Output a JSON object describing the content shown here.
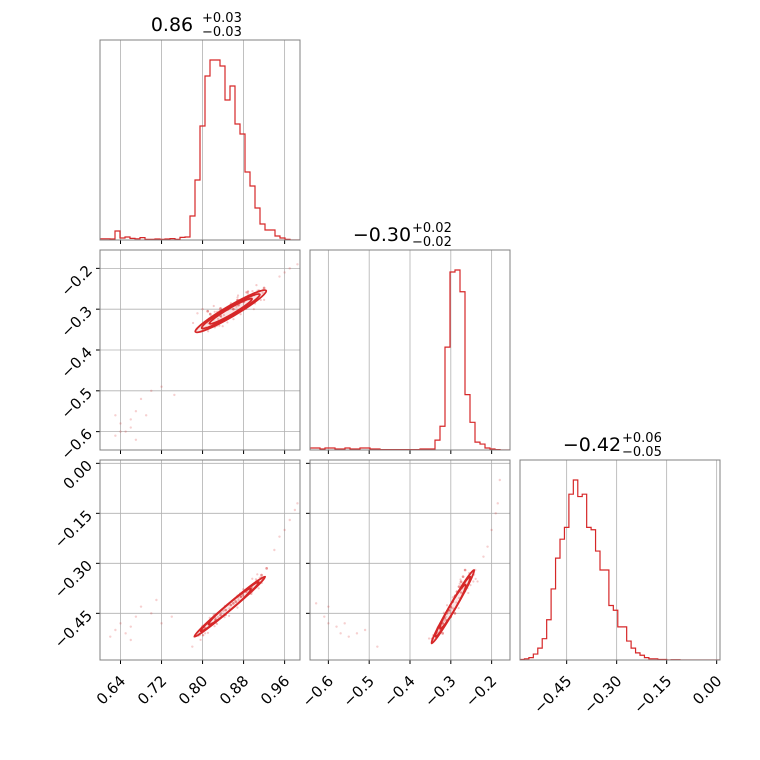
{
  "chart_data": {
    "type": "corner",
    "grid": true,
    "colors": {
      "line": "#d62728",
      "grid": "#b0b0b0",
      "frame": "#808080"
    },
    "titles": [
      {
        "main": "0.86",
        "plus": "+0.03",
        "minus": "−0.03"
      },
      {
        "main": "−0.30",
        "plus": "+0.02",
        "minus": "−0.02"
      },
      {
        "main": "−0.42",
        "plus": "+0.06",
        "minus": "−0.05"
      }
    ],
    "params": [
      {
        "range": [
          0.6,
          0.99
        ],
        "ticks": [
          0.64,
          0.72,
          0.8,
          0.88,
          0.96
        ],
        "tick_labels": [
          "0.64",
          "0.72",
          "0.80",
          "0.88",
          "0.96"
        ]
      },
      {
        "range": [
          -0.645,
          -0.155
        ],
        "ticks": [
          -0.6,
          -0.5,
          -0.4,
          -0.3,
          -0.2
        ],
        "tick_labels": [
          "−0.6",
          "−0.5",
          "−0.4",
          "−0.3",
          "−0.2"
        ]
      },
      {
        "range": [
          -0.59,
          0.01
        ],
        "ticks": [
          -0.45,
          -0.3,
          -0.15,
          0.0
        ],
        "tick_labels": [
          "−0.45",
          "−0.30",
          "−0.15",
          "0.00"
        ]
      }
    ],
    "histograms": [
      {
        "bins": 40,
        "counts": [
          0.6,
          0.6,
          0.5,
          4.5,
          1.0,
          1.5,
          0.8,
          0.6,
          1.2,
          0.3,
          0.3,
          0.5,
          0.3,
          0.5,
          0.7,
          0.3,
          1.3,
          1.5,
          12,
          30,
          57,
          82,
          90,
          90,
          87,
          70,
          77,
          58,
          53,
          34,
          27,
          16,
          8,
          5,
          5,
          2,
          1,
          0.3,
          0,
          0
        ]
      },
      {
        "bins": 40,
        "counts": [
          1,
          1,
          0.5,
          1,
          1,
          0.5,
          0.5,
          1,
          0.5,
          0.5,
          1,
          1,
          0.5,
          0.5,
          0.2,
          0.2,
          0.2,
          0.2,
          0.2,
          0.2,
          0.2,
          0.2,
          0.5,
          0.5,
          0.5,
          5,
          12,
          52,
          90,
          91,
          80,
          28,
          14,
          4,
          3,
          1,
          0.5,
          0.2,
          0,
          0
        ]
      },
      {
        "bins": 45,
        "counts": [
          0.2,
          0.5,
          1,
          2.5,
          5,
          9,
          17,
          30,
          43,
          51,
          56,
          70,
          76,
          69,
          70,
          56,
          55,
          46,
          38,
          38,
          23,
          21,
          14,
          14,
          8,
          5,
          3,
          2,
          1,
          0.5,
          0.5,
          0.2,
          0.2,
          0,
          0.1,
          0.1,
          0,
          0,
          0,
          0,
          0,
          0,
          0,
          0,
          0
        ]
      }
    ],
    "scatter": [
      {
        "x_param": 0,
        "y_param": 1,
        "center": [
          0.855,
          -0.305
        ],
        "direction": [
          0.069,
          0.0505
        ],
        "widths": [
          0.0075,
          0.0085,
          0.0095
        ],
        "core_points": [
          [
            0.815,
            -0.312
          ],
          [
            0.825,
            -0.318
          ],
          [
            0.835,
            -0.316
          ],
          [
            0.84,
            -0.305
          ],
          [
            0.85,
            -0.3
          ],
          [
            0.86,
            -0.3
          ],
          [
            0.87,
            -0.29
          ],
          [
            0.88,
            -0.282
          ],
          [
            0.89,
            -0.275
          ],
          [
            0.9,
            -0.262
          ],
          [
            0.91,
            -0.255
          ],
          [
            0.92,
            -0.248
          ],
          [
            0.835,
            -0.298
          ],
          [
            0.855,
            -0.29
          ],
          [
            0.81,
            -0.305
          ],
          [
            0.868,
            -0.278
          ]
        ],
        "outliers": [
          [
            0.63,
            -0.61
          ],
          [
            0.64,
            -0.58
          ],
          [
            0.65,
            -0.6
          ],
          [
            0.66,
            -0.57
          ],
          [
            0.67,
            -0.55
          ],
          [
            0.66,
            -0.59
          ],
          [
            0.68,
            -0.52
          ],
          [
            0.7,
            -0.5
          ],
          [
            0.72,
            -0.49
          ],
          [
            0.63,
            -0.56
          ],
          [
            0.67,
            -0.62
          ],
          [
            0.64,
            -0.6
          ],
          [
            0.745,
            -0.51
          ],
          [
            0.69,
            -0.56
          ],
          [
            0.95,
            -0.22
          ],
          [
            0.97,
            -0.2
          ],
          [
            0.96,
            -0.21
          ],
          [
            0.985,
            -0.19
          ],
          [
            0.8,
            -0.3
          ],
          [
            0.79,
            -0.31
          ]
        ]
      },
      {
        "x_param": 0,
        "y_param": 2,
        "center": [
          0.853,
          -0.43
        ],
        "direction": [
          0.069,
          0.09
        ],
        "widths": [
          0.0045,
          0.0055,
          0.0065
        ],
        "core_points": [
          [
            0.805,
            -0.495
          ],
          [
            0.815,
            -0.485
          ],
          [
            0.825,
            -0.47
          ],
          [
            0.835,
            -0.455
          ],
          [
            0.845,
            -0.44
          ],
          [
            0.855,
            -0.425
          ],
          [
            0.865,
            -0.415
          ],
          [
            0.875,
            -0.4
          ],
          [
            0.885,
            -0.385
          ],
          [
            0.895,
            -0.37
          ],
          [
            0.905,
            -0.355
          ],
          [
            0.915,
            -0.335
          ],
          [
            0.925,
            -0.315
          ],
          [
            0.8,
            -0.5
          ],
          [
            0.86,
            -0.42
          ]
        ],
        "outliers": [
          [
            0.63,
            -0.5
          ],
          [
            0.64,
            -0.48
          ],
          [
            0.65,
            -0.51
          ],
          [
            0.66,
            -0.49
          ],
          [
            0.67,
            -0.46
          ],
          [
            0.68,
            -0.43
          ],
          [
            0.7,
            -0.45
          ],
          [
            0.72,
            -0.48
          ],
          [
            0.74,
            -0.46
          ],
          [
            0.62,
            -0.52
          ],
          [
            0.66,
            -0.53
          ],
          [
            0.71,
            -0.41
          ],
          [
            0.95,
            -0.22
          ],
          [
            0.96,
            -0.2
          ],
          [
            0.97,
            -0.17
          ],
          [
            0.98,
            -0.14
          ],
          [
            0.985,
            -0.12
          ],
          [
            0.94,
            -0.26
          ],
          [
            0.78,
            -0.55
          ]
        ]
      },
      {
        "x_param": 1,
        "y_param": 2,
        "center": [
          -0.295,
          -0.43
        ],
        "direction": [
          0.052,
          0.11
        ],
        "widths": [
          0.0045,
          0.0055,
          0.0065
        ],
        "core_points": [
          [
            -0.325,
            -0.5
          ],
          [
            -0.32,
            -0.48
          ],
          [
            -0.315,
            -0.465
          ],
          [
            -0.31,
            -0.45
          ],
          [
            -0.305,
            -0.44
          ],
          [
            -0.3,
            -0.43
          ],
          [
            -0.295,
            -0.415
          ],
          [
            -0.29,
            -0.4
          ],
          [
            -0.285,
            -0.385
          ],
          [
            -0.28,
            -0.37
          ],
          [
            -0.275,
            -0.355
          ],
          [
            -0.27,
            -0.34
          ],
          [
            -0.265,
            -0.32
          ],
          [
            -0.33,
            -0.49
          ],
          [
            -0.32,
            -0.51
          ],
          [
            -0.3,
            -0.46
          ],
          [
            -0.29,
            -0.45
          ]
        ],
        "outliers": [
          [
            -0.63,
            -0.42
          ],
          [
            -0.61,
            -0.46
          ],
          [
            -0.6,
            -0.48
          ],
          [
            -0.58,
            -0.49
          ],
          [
            -0.57,
            -0.51
          ],
          [
            -0.55,
            -0.52
          ],
          [
            -0.53,
            -0.51
          ],
          [
            -0.51,
            -0.5
          ],
          [
            -0.48,
            -0.55
          ],
          [
            -0.6,
            -0.43
          ],
          [
            -0.56,
            -0.48
          ],
          [
            -0.22,
            -0.28
          ],
          [
            -0.21,
            -0.25
          ],
          [
            -0.2,
            -0.2
          ],
          [
            -0.19,
            -0.15
          ],
          [
            -0.185,
            -0.12
          ],
          [
            -0.18,
            -0.05
          ],
          [
            -0.24,
            -0.32
          ]
        ]
      }
    ]
  }
}
